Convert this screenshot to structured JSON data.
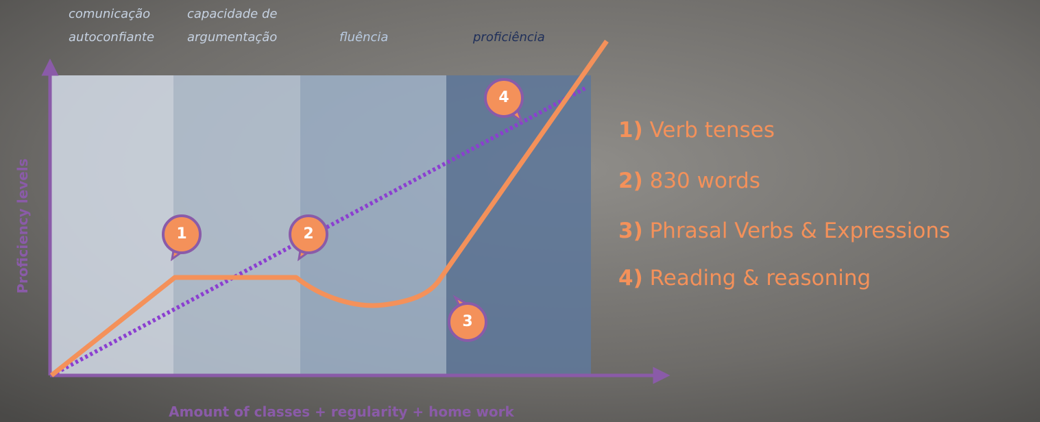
{
  "columns": [
    {
      "lines": [
        "comunicação",
        "autoconfiante"
      ]
    },
    {
      "lines": [
        "capacidade de",
        "argumentação"
      ]
    },
    {
      "lines": [
        "fluência"
      ]
    },
    {
      "lines": [
        "proficiência"
      ]
    }
  ],
  "axes": {
    "y_label": "Proficiency levels",
    "x_label": "Amount of classes + regularity + home work"
  },
  "callouts": [
    "1",
    "2",
    "3",
    "4"
  ],
  "list": [
    {
      "number": "1)",
      "text": "Verb tenses"
    },
    {
      "number": "2)",
      "text": "830 words"
    },
    {
      "number": "3)",
      "text": "Phrasal Verbs & Expressions"
    },
    {
      "number": "4)",
      "text": "Reading & reasoning"
    }
  ]
}
